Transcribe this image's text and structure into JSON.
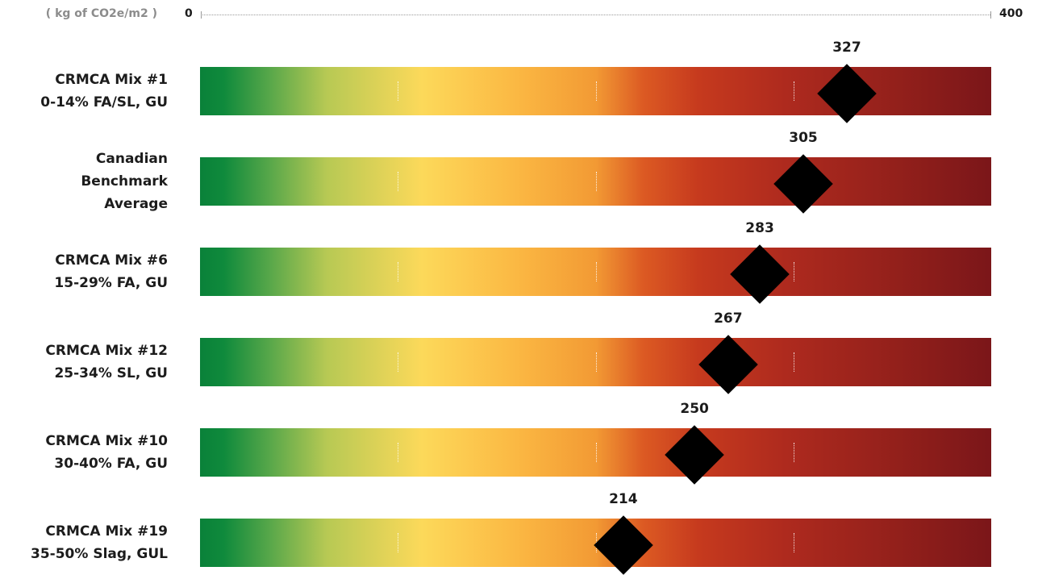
{
  "chart_data": {
    "type": "gauge-bars",
    "unit_label": "( kg of CO2e/m2 )",
    "xlim": [
      0,
      400
    ],
    "axis_min_label": "0",
    "axis_max_label": "400",
    "colors": {
      "low": "#0a8139",
      "mid": "#fcd95a",
      "high": "#c63a1e",
      "max": "#7b1619",
      "marker": "#000000"
    },
    "rows": [
      {
        "lines": [
          "CRMCA Mix #1",
          "0-14% FA/SL, GU"
        ],
        "value": 327,
        "value_label": "327"
      },
      {
        "lines": [
          "Canadian",
          "Benchmark",
          "Average"
        ],
        "value": 305,
        "value_label": "305"
      },
      {
        "lines": [
          "CRMCA Mix #6",
          "15-29% FA, GU"
        ],
        "value": 283,
        "value_label": "283"
      },
      {
        "lines": [
          "CRMCA Mix #12",
          "25-34% SL, GU"
        ],
        "value": 267,
        "value_label": "267"
      },
      {
        "lines": [
          "CRMCA Mix #10",
          "30-40% FA, GU"
        ],
        "value": 250,
        "value_label": "250"
      },
      {
        "lines": [
          "CRMCA Mix #19",
          "35-50% Slag, GUL"
        ],
        "value": 214,
        "value_label": "214"
      }
    ]
  }
}
